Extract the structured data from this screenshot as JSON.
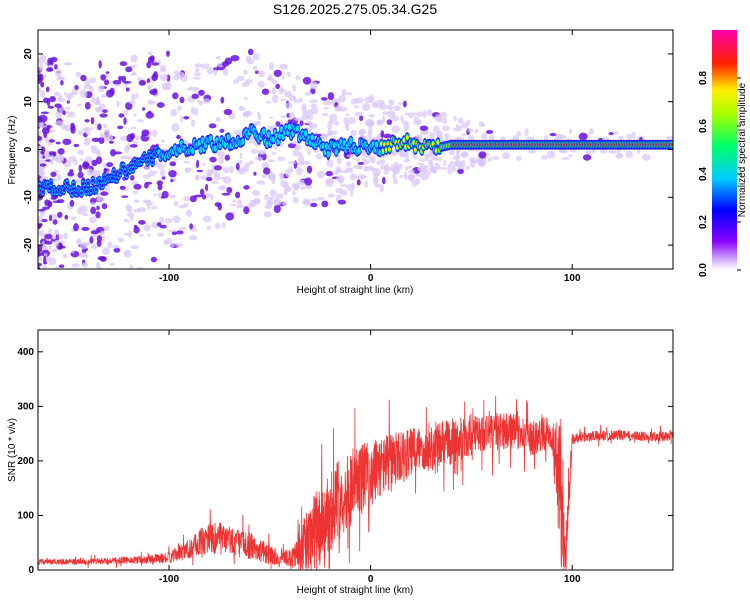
{
  "title": "S126.2025.275.05.34.G25",
  "colors": {
    "line": "#ee3333",
    "ridge_core": "#ff2020",
    "ridge_mid": "#00e0ff",
    "ridge_outer": "#2020ff",
    "blob_dark": "#6a10e0",
    "blob_light": "#d8c4f8"
  },
  "chart_data": [
    {
      "type": "heatmap",
      "xlabel": "Height of straight line (km)",
      "ylabel": "Frequency (Hz)",
      "xlim": [
        -165,
        150
      ],
      "ylim": [
        -25,
        25
      ],
      "xticks": [
        -100,
        0,
        100
      ],
      "yticks": [
        -20,
        -10,
        0,
        10,
        20
      ],
      "colorbar": {
        "label": "Normalized spectral amplitude",
        "range": [
          0,
          1
        ],
        "ticks": [
          "0.0",
          "0.2",
          "0.4",
          "0.6",
          "0.8"
        ],
        "colormap": "rainbow (purple-blue-cyan-green-yellow-red-magenta)"
      },
      "ridge": {
        "x": [
          -165,
          -140,
          -125,
          -115,
          -105,
          -95,
          -85,
          -75,
          -65,
          -60,
          -55,
          -50,
          -45,
          -40,
          -35,
          -30,
          -25,
          -20,
          -15,
          -10,
          -5,
          0,
          5,
          10,
          15,
          20,
          25,
          30,
          35,
          40,
          50,
          60,
          70,
          80,
          85,
          90,
          95,
          100,
          120,
          150
        ],
        "y": [
          -8,
          -8,
          -5,
          -3,
          -1,
          0,
          1,
          1.5,
          2,
          4,
          3,
          2,
          3,
          4,
          3,
          2,
          1,
          0,
          0.5,
          1,
          0.5,
          1,
          0.5,
          1,
          2,
          1,
          0.5,
          1,
          0.5,
          1,
          1,
          1,
          1,
          1,
          1,
          1,
          1,
          1,
          1,
          1
        ],
        "amplitude": [
          0.2,
          0.25,
          0.3,
          0.35,
          0.4,
          0.4,
          0.4,
          0.4,
          0.4,
          0.45,
          0.45,
          0.4,
          0.4,
          0.45,
          0.45,
          0.45,
          0.45,
          0.45,
          0.45,
          0.45,
          0.45,
          0.45,
          0.5,
          0.5,
          0.5,
          0.55,
          0.6,
          0.6,
          0.65,
          0.8,
          0.85,
          0.85,
          0.85,
          0.85,
          0.85,
          0.85,
          0.85,
          0.9,
          0.9,
          0.9
        ]
      }
    },
    {
      "type": "line",
      "xlabel": "Height of straight line (km)",
      "ylabel": "SNR (10 * v/v)",
      "xlim": [
        -165,
        150
      ],
      "ylim": [
        0,
        440
      ],
      "xticks": [
        -100,
        0,
        100
      ],
      "yticks": [
        0,
        100,
        200,
        300,
        400
      ],
      "series": [
        {
          "x": [
            -165,
            -150,
            -130,
            -110,
            -100,
            -90,
            -80,
            -70,
            -60,
            -50,
            -40,
            -35,
            -30,
            -25,
            -20,
            -15,
            -10,
            -5,
            0,
            5,
            10,
            15,
            20,
            25,
            30,
            35,
            40,
            45,
            50,
            55,
            60,
            65,
            70,
            75,
            80,
            85,
            90,
            95,
            97,
            100,
            105,
            110,
            120,
            130,
            140,
            150
          ],
          "y": [
            15,
            15,
            16,
            20,
            22,
            40,
            60,
            55,
            45,
            28,
            22,
            35,
            60,
            80,
            110,
            130,
            150,
            170,
            175,
            190,
            200,
            205,
            215,
            225,
            225,
            230,
            235,
            240,
            245,
            250,
            255,
            255,
            255,
            250,
            240,
            250,
            250,
            130,
            40,
            240,
            245,
            245,
            248,
            245,
            245,
            245
          ],
          "noise": [
            5,
            5,
            6,
            8,
            10,
            20,
            30,
            28,
            25,
            18,
            15,
            40,
            70,
            80,
            80,
            70,
            70,
            70,
            60,
            55,
            55,
            50,
            45,
            45,
            45,
            45,
            45,
            40,
            40,
            35,
            40,
            35,
            35,
            30,
            35,
            30,
            35,
            150,
            60,
            10,
            10,
            10,
            9,
            9,
            9,
            9
          ]
        }
      ]
    }
  ]
}
